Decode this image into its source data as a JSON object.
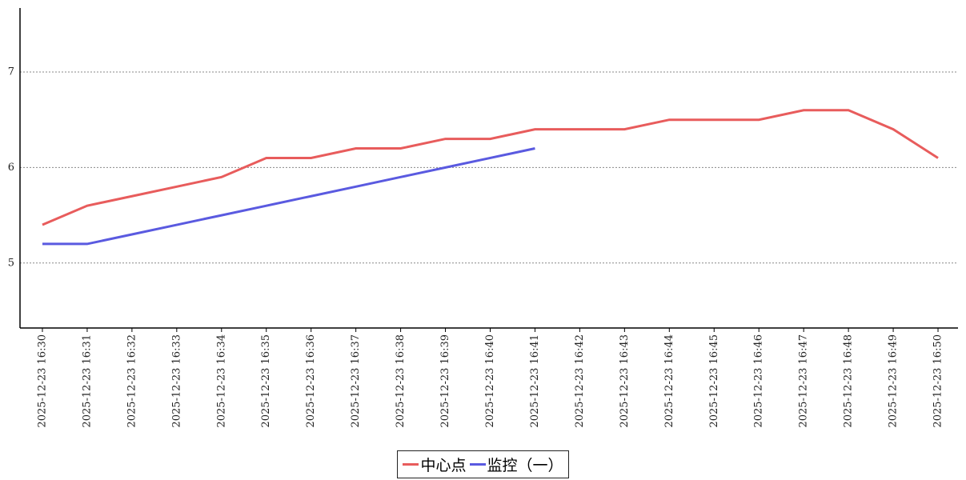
{
  "chart_data": {
    "type": "line",
    "categories": [
      "2025-12-23 16:30",
      "2025-12-23 16:31",
      "2025-12-23 16:32",
      "2025-12-23 16:33",
      "2025-12-23 16:34",
      "2025-12-23 16:35",
      "2025-12-23 16:36",
      "2025-12-23 16:37",
      "2025-12-23 16:38",
      "2025-12-23 16:39",
      "2025-12-23 16:40",
      "2025-12-23 16:41",
      "2025-12-23 16:42",
      "2025-12-23 16:43",
      "2025-12-23 16:44",
      "2025-12-23 16:45",
      "2025-12-23 16:46",
      "2025-12-23 16:47",
      "2025-12-23 16:48",
      "2025-12-23 16:49",
      "2025-12-23 16:50"
    ],
    "series": [
      {
        "name": "中心点",
        "color": "#e85c5c",
        "values": [
          5.4,
          5.6,
          5.7,
          5.8,
          5.9,
          6.1,
          6.1,
          6.2,
          6.2,
          6.3,
          6.3,
          6.4,
          6.4,
          6.4,
          6.5,
          6.5,
          6.5,
          6.6,
          6.6,
          6.4,
          6.1
        ]
      },
      {
        "name": "监控（一）",
        "color": "#5a5ae0",
        "values": [
          5.2,
          5.2,
          5.3,
          5.4,
          5.5,
          5.6,
          5.7,
          5.8,
          5.9,
          6.0,
          6.1,
          6.2,
          null,
          null,
          null,
          null,
          null,
          null,
          null,
          null,
          null
        ]
      }
    ],
    "ylim": [
      4.32,
      7.67
    ],
    "yticks": [
      5,
      6,
      7
    ],
    "grid": true
  }
}
